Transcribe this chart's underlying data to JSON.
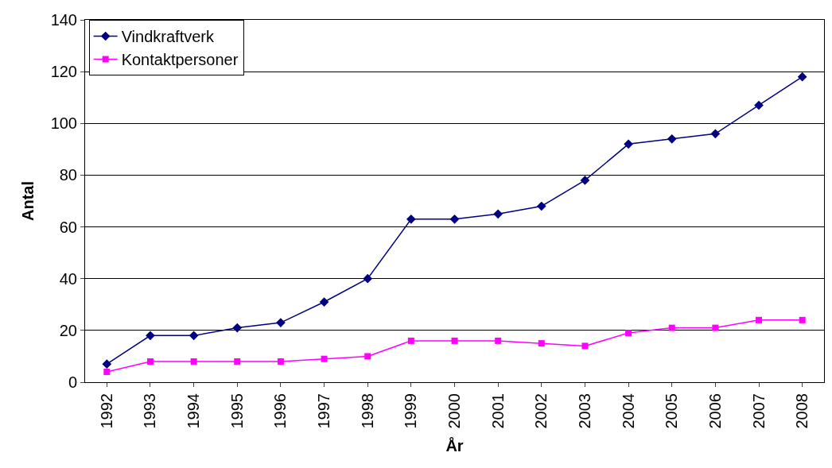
{
  "chart_data": {
    "type": "line",
    "xlabel": "År",
    "ylabel": "Antal",
    "categories": [
      "1992",
      "1993",
      "1994",
      "1995",
      "1996",
      "1997",
      "1998",
      "1999",
      "2000",
      "2001",
      "2002",
      "2003",
      "2004",
      "2005",
      "2006",
      "2007",
      "2008"
    ],
    "series": [
      {
        "name": "Vindkraftverk",
        "color": "#000080",
        "marker": "diamond",
        "values": [
          7,
          18,
          18,
          21,
          23,
          31,
          40,
          63,
          63,
          65,
          68,
          78,
          92,
          94,
          96,
          107,
          118
        ]
      },
      {
        "name": "Kontaktpersoner",
        "color": "#ff00ff",
        "marker": "square",
        "values": [
          4,
          8,
          8,
          8,
          8,
          9,
          10,
          16,
          16,
          16,
          15,
          14,
          19,
          21,
          21,
          24,
          24
        ]
      }
    ],
    "ylim": [
      0,
      140
    ],
    "yticks": [
      0,
      20,
      40,
      60,
      80,
      100,
      120,
      140
    ],
    "grid": "y",
    "legend": "top left",
    "line_style": "solid"
  }
}
